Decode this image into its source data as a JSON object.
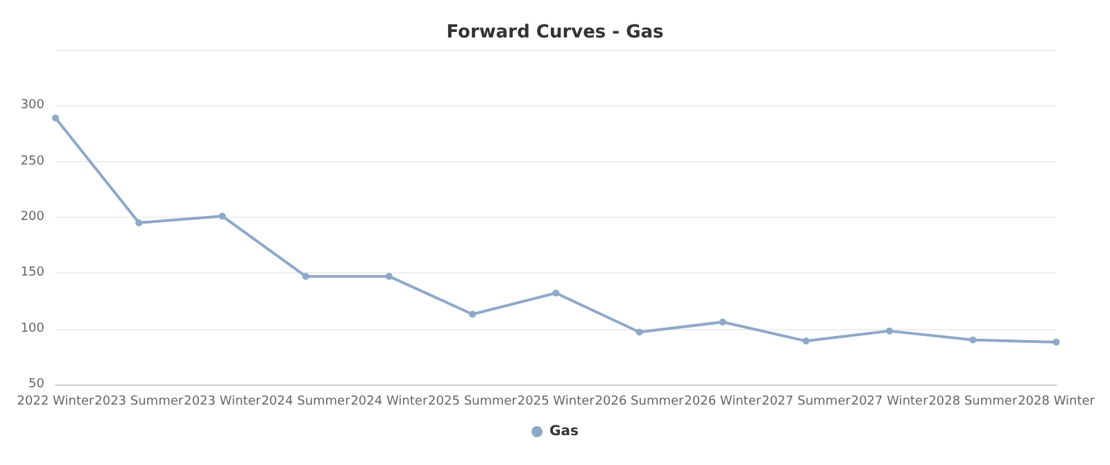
{
  "chart_data": {
    "type": "line",
    "title": "Forward Curves - Gas",
    "categories": [
      "2022 Winter",
      "2023 Summer",
      "2023 Winter",
      "2024 Summer",
      "2024 Winter",
      "2025 Summer",
      "2025 Winter",
      "2026 Summer",
      "2026 Winter",
      "2027 Summer",
      "2027 Winter",
      "2028 Summer",
      "2028 Winter"
    ],
    "series": [
      {
        "name": "Gas",
        "color": "#8ea8c8",
        "values": [
          289,
          195,
          201,
          147,
          147,
          113,
          132,
          97,
          106,
          89,
          98,
          90,
          88
        ]
      }
    ],
    "ylim": [
      50,
      350
    ],
    "yticks": [
      50,
      100,
      150,
      200,
      250,
      300,
      {
        "value": 350,
        "label": null
      }
    ],
    "grid": "y",
    "legend": "bottom",
    "marker": "circle",
    "line_style": "solid"
  }
}
